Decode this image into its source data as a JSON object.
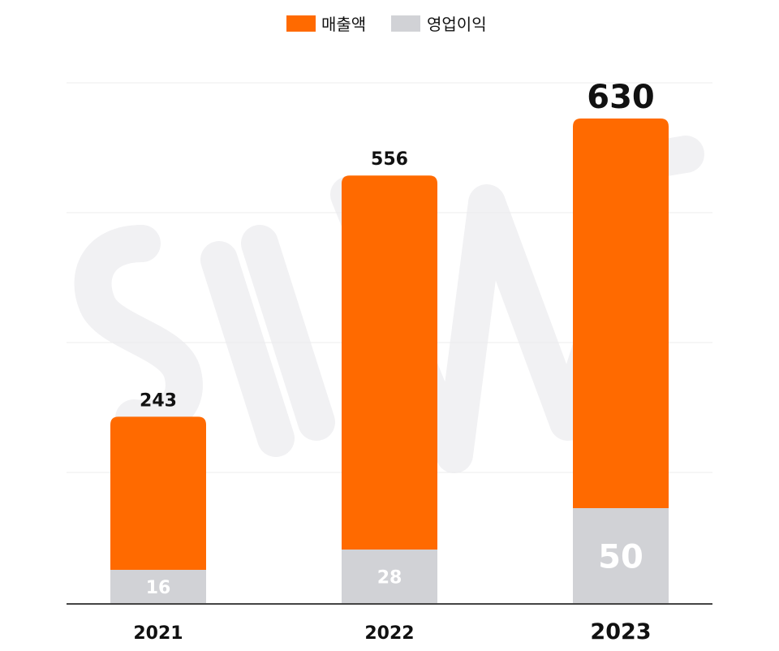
{
  "chart_data": {
    "type": "bar",
    "stacked": true,
    "categories": [
      "2021",
      "2022",
      "2023"
    ],
    "series": [
      {
        "name": "매출액",
        "values": [
          243,
          556,
          630
        ],
        "color": "#ff6a00"
      },
      {
        "name": "영업이익",
        "values": [
          16,
          28,
          50
        ],
        "color": "#d1d2d6"
      }
    ],
    "legend": {
      "position": "top-center",
      "items": [
        "매출액",
        "영업이익"
      ]
    },
    "grid": true,
    "colors": {
      "revenue": "#ff6a00",
      "profit": "#d1d2d6",
      "text": "#111111",
      "profit_label": "#ffffff"
    }
  }
}
